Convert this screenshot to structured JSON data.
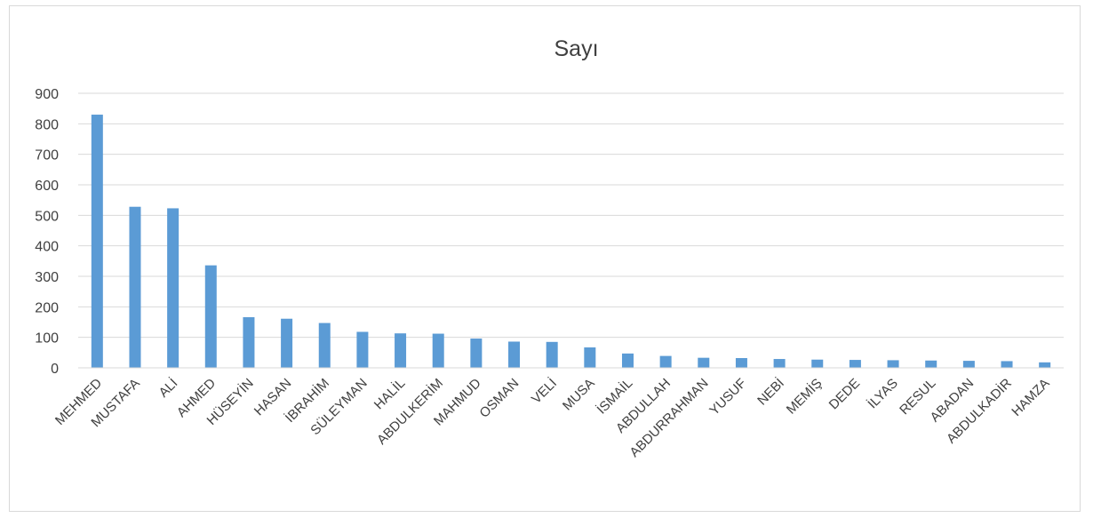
{
  "chart_data": {
    "type": "bar",
    "title": "Sayı",
    "xlabel": "",
    "ylabel": "",
    "ylim": [
      0,
      900
    ],
    "yticks": [
      0,
      100,
      200,
      300,
      400,
      500,
      600,
      700,
      800,
      900
    ],
    "grid": true,
    "legend": "none",
    "bar_color": "#5b9bd5",
    "categories": [
      "MEHMED",
      "MUSTAFA",
      "ALİ",
      "AHMED",
      "HÜSEYİN",
      "HASAN",
      "İBRAHİM",
      "SÜLEYMAN",
      "HALİL",
      "ABDULKERİM",
      "MAHMUD",
      "OSMAN",
      "VELİ",
      "MUSA",
      "İSMAİL",
      "ABDULLAH",
      "ABDURRAHMAN",
      "YUSUF",
      "NEBİ",
      "MEMİŞ",
      "DEDE",
      "İLYAS",
      "RESUL",
      "ABADAN",
      "ABDULKADİR",
      "HAMZA"
    ],
    "values": [
      830,
      528,
      523,
      336,
      166,
      161,
      147,
      118,
      113,
      112,
      96,
      86,
      85,
      67,
      47,
      39,
      33,
      32,
      29,
      27,
      26,
      25,
      24,
      23,
      22,
      18
    ]
  }
}
